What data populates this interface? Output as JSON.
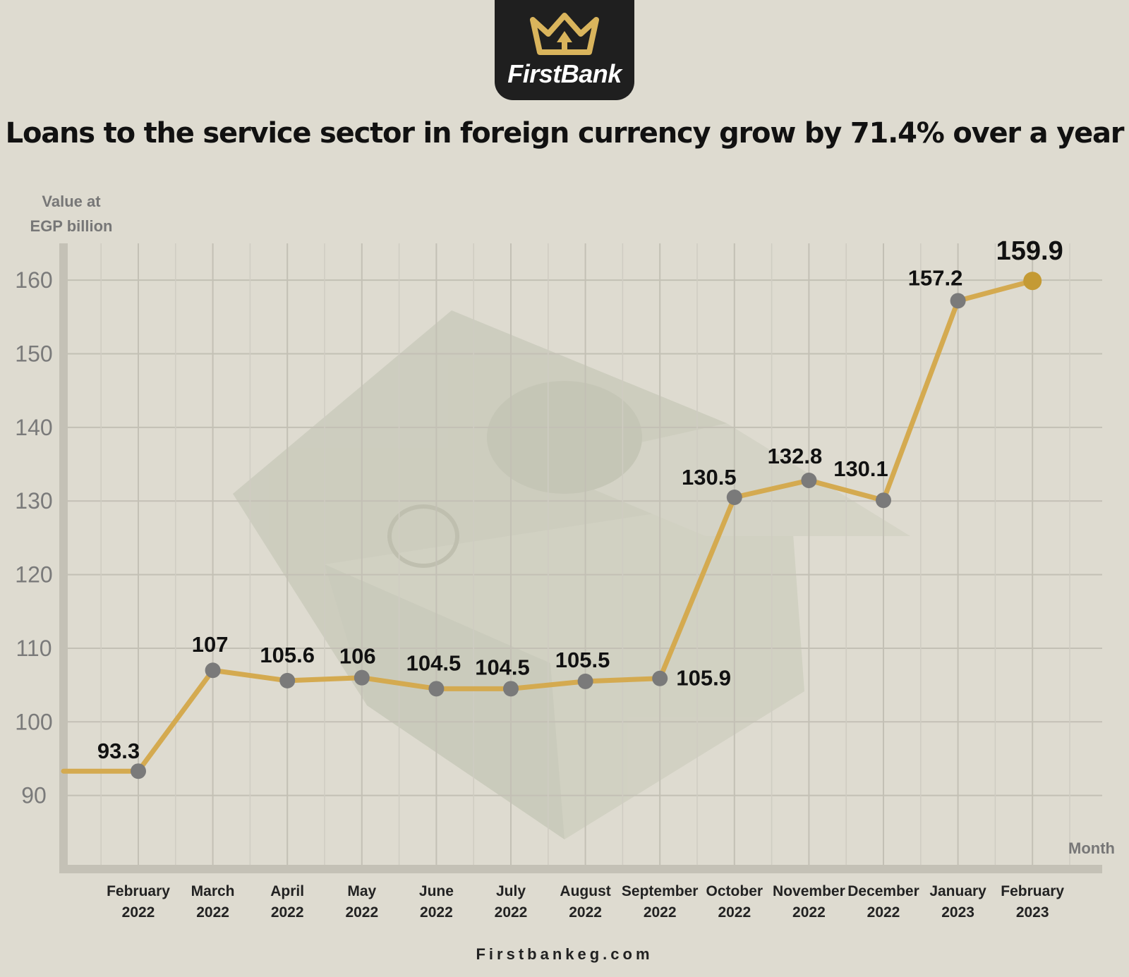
{
  "brand": {
    "name": "FirstBank",
    "website": "Firstbankeg.com",
    "accent": "#d4aa50"
  },
  "chart_data": {
    "type": "line",
    "title": "Loans to the service sector in foreign currency grow by 71.4% over a year",
    "ylabel_line1": "Value at",
    "ylabel_line2": "EGP billion",
    "xlabel": "Month",
    "ylim": [
      80,
      165
    ],
    "yticks": [
      90,
      100,
      110,
      120,
      130,
      140,
      150,
      160
    ],
    "grid": true,
    "categories": [
      {
        "month": "February",
        "year": "2022"
      },
      {
        "month": "March",
        "year": "2022"
      },
      {
        "month": "April",
        "year": "2022"
      },
      {
        "month": "May",
        "year": "2022"
      },
      {
        "month": "June",
        "year": "2022"
      },
      {
        "month": "July",
        "year": "2022"
      },
      {
        "month": "August",
        "year": "2022"
      },
      {
        "month": "September",
        "year": "2022"
      },
      {
        "month": "October",
        "year": "2022"
      },
      {
        "month": "November",
        "year": "2022"
      },
      {
        "month": "December",
        "year": "2022"
      },
      {
        "month": "January",
        "year": "2023"
      },
      {
        "month": "February",
        "year": "2023"
      }
    ],
    "values": [
      93.3,
      107,
      105.6,
      106,
      104.5,
      104.5,
      105.5,
      105.9,
      130.5,
      132.8,
      130.1,
      157.2,
      159.9
    ],
    "line_color": "#d4aa50",
    "marker_color": "#7a7a7a",
    "highlight_color": "#c49a34"
  }
}
